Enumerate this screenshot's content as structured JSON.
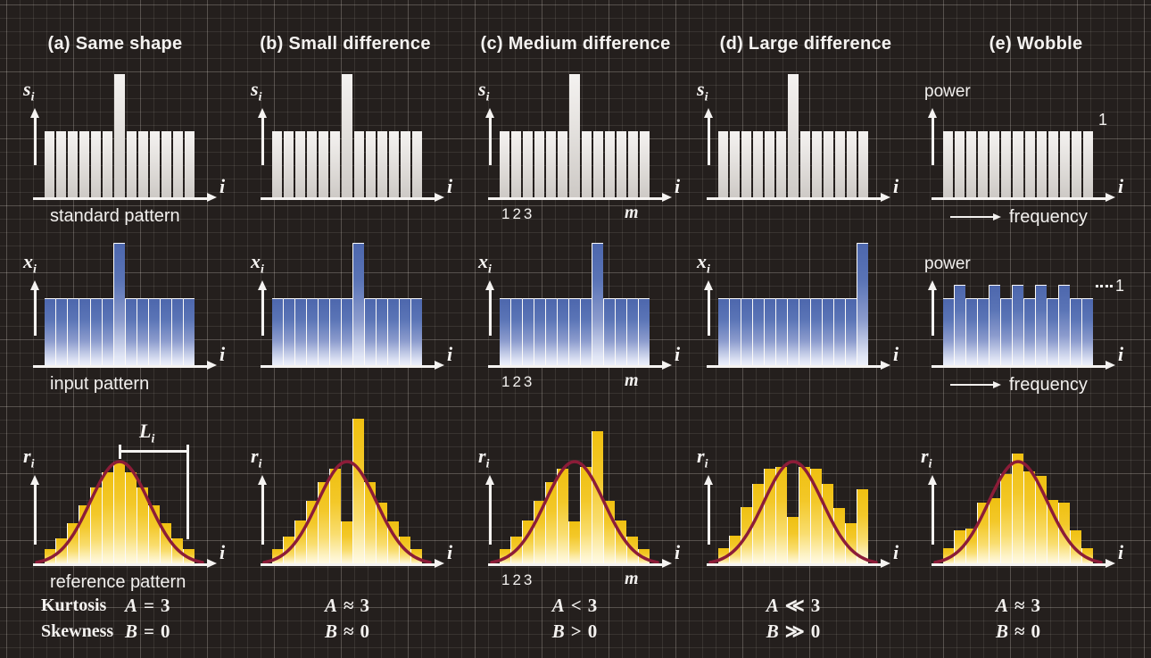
{
  "figure": {
    "columns": [
      {
        "key": "a",
        "header": "(a) Same shape"
      },
      {
        "key": "b",
        "header": "(b) Small difference"
      },
      {
        "key": "c",
        "header": "(c) Medium difference"
      },
      {
        "key": "d",
        "header": "(d) Large difference"
      },
      {
        "key": "e",
        "header": "(e) Wobble"
      }
    ],
    "row_captions": {
      "standard": "standard pattern",
      "input": "input pattern",
      "reference": "reference pattern"
    },
    "stats": {
      "row1_label": "Kurtosis",
      "row2_label": "Skewness",
      "values": [
        {
          "col": "a",
          "kurtosis": {
            "var": "A",
            "op": "=",
            "value": "3"
          },
          "skewness": {
            "var": "B",
            "op": "=",
            "value": "0"
          }
        },
        {
          "col": "b",
          "kurtosis": {
            "var": "A",
            "op": "≈",
            "value": "3"
          },
          "skewness": {
            "var": "B",
            "op": "≈",
            "value": "0"
          }
        },
        {
          "col": "c",
          "kurtosis": {
            "var": "A",
            "op": "<",
            "value": "3"
          },
          "skewness": {
            "var": "B",
            "op": ">",
            "value": "0"
          }
        },
        {
          "col": "d",
          "kurtosis": {
            "var": "A",
            "op": "≪",
            "value": "3"
          },
          "skewness": {
            "var": "B",
            "op": "≫",
            "value": "0"
          }
        },
        {
          "col": "e",
          "kurtosis": {
            "var": "A",
            "op": "≈",
            "value": "3"
          },
          "skewness": {
            "var": "B",
            "op": "≈",
            "value": "0"
          }
        }
      ]
    },
    "colors": {
      "background": "#241f1d",
      "bar_white_top": "#f4f2f0",
      "bar_white_bottom": "#cdc9c5",
      "bar_blue_top": "#4d67ad",
      "bar_blue_bottom": "#eef1fa",
      "bar_yellow_top": "#efc011",
      "bar_yellow_bottom": "#fffbe8",
      "curve": "#8c1c38",
      "axis": "#f5f3f1",
      "text": "#f2f0ee"
    }
  },
  "chart_data": [
    {
      "id": "a-standard",
      "col": "a",
      "row": "standard",
      "type": "bar",
      "style": "white",
      "ylabel": {
        "main": "s",
        "sub": "i"
      },
      "xlabel": "i",
      "caption": "standard pattern",
      "values": [
        1,
        1,
        1,
        1,
        1,
        1,
        1.85,
        1,
        1,
        1,
        1,
        1,
        1
      ]
    },
    {
      "id": "b-standard",
      "col": "b",
      "row": "standard",
      "type": "bar",
      "style": "white",
      "ylabel": {
        "main": "s",
        "sub": "i"
      },
      "xlabel": "i",
      "values": [
        1,
        1,
        1,
        1,
        1,
        1,
        1.85,
        1,
        1,
        1,
        1,
        1,
        1
      ]
    },
    {
      "id": "c-standard",
      "col": "c",
      "row": "standard",
      "type": "bar",
      "style": "white",
      "ylabel": {
        "main": "s",
        "sub": "i"
      },
      "xlabel": "i",
      "tick_left": "123",
      "tick_right": "m",
      "values": [
        1,
        1,
        1,
        1,
        1,
        1,
        1.85,
        1,
        1,
        1,
        1,
        1,
        1
      ]
    },
    {
      "id": "d-standard",
      "col": "d",
      "row": "standard",
      "type": "bar",
      "style": "white",
      "ylabel": {
        "main": "s",
        "sub": "i"
      },
      "xlabel": "i",
      "values": [
        1,
        1,
        1,
        1,
        1,
        1,
        1.85,
        1,
        1,
        1,
        1,
        1,
        1
      ]
    },
    {
      "id": "e-standard",
      "col": "e",
      "row": "standard",
      "type": "bar",
      "style": "white",
      "ylabel": {
        "text": "power"
      },
      "xlabel": "i",
      "freq_caption": "frequency",
      "right_marker": {
        "text": "1",
        "leader_dots": false
      },
      "values": [
        1,
        1,
        1,
        1,
        1,
        1,
        1,
        1,
        1,
        1,
        1,
        1,
        1
      ]
    },
    {
      "id": "a-input",
      "col": "a",
      "row": "input",
      "type": "bar",
      "style": "blue",
      "ylabel": {
        "main": "x",
        "sub": "i"
      },
      "xlabel": "i",
      "caption": "input pattern",
      "values": [
        1,
        1,
        1,
        1,
        1,
        1,
        1.83,
        1,
        1,
        1,
        1,
        1,
        1
      ]
    },
    {
      "id": "b-input",
      "col": "b",
      "row": "input",
      "type": "bar",
      "style": "blue",
      "ylabel": {
        "main": "x",
        "sub": "i"
      },
      "xlabel": "i",
      "values": [
        1,
        1,
        1,
        1,
        1,
        1,
        1,
        1.83,
        1,
        1,
        1,
        1,
        1
      ]
    },
    {
      "id": "c-input",
      "col": "c",
      "row": "input",
      "type": "bar",
      "style": "blue",
      "ylabel": {
        "main": "x",
        "sub": "i"
      },
      "xlabel": "i",
      "tick_left": "123",
      "tick_right": "m",
      "values": [
        1,
        1,
        1,
        1,
        1,
        1,
        1,
        1,
        1.83,
        1,
        1,
        1,
        1
      ]
    },
    {
      "id": "d-input",
      "col": "d",
      "row": "input",
      "type": "bar",
      "style": "blue",
      "ylabel": {
        "main": "x",
        "sub": "i"
      },
      "xlabel": "i",
      "values": [
        1,
        1,
        1,
        1,
        1,
        1,
        1,
        1,
        1,
        1,
        1,
        1,
        1.83
      ]
    },
    {
      "id": "e-input",
      "col": "e",
      "row": "input",
      "type": "bar",
      "style": "blue",
      "ylabel": {
        "text": "power"
      },
      "xlabel": "i",
      "freq_caption": "frequency",
      "right_marker": {
        "text": "1",
        "leader_dots": true
      },
      "values": [
        1,
        1.2,
        1,
        1,
        1.2,
        1,
        1.2,
        1,
        1.2,
        1,
        1.2,
        1,
        1
      ]
    },
    {
      "id": "a-reference",
      "col": "a",
      "row": "reference",
      "type": "bar",
      "style": "yellow",
      "ylabel": {
        "main": "r",
        "sub": "i"
      },
      "xlabel": "i",
      "caption": "reference pattern",
      "curve": {
        "shape": "gaussian",
        "sigma_bars": 2.55,
        "peak": 1
      },
      "bracket": {
        "main": "L",
        "sub": "i"
      },
      "values": [
        0.15,
        0.25,
        0.4,
        0.57,
        0.75,
        0.9,
        1.0,
        0.9,
        0.75,
        0.57,
        0.4,
        0.25,
        0.15
      ]
    },
    {
      "id": "b-reference",
      "col": "b",
      "row": "reference",
      "type": "bar",
      "style": "yellow",
      "ylabel": {
        "main": "r",
        "sub": "i"
      },
      "xlabel": "i",
      "curve": {
        "shape": "gaussian",
        "sigma_bars": 2.55,
        "peak": 1
      },
      "values": [
        0.15,
        0.27,
        0.43,
        0.62,
        0.8,
        0.93,
        0.42,
        1.42,
        0.8,
        0.6,
        0.42,
        0.27,
        0.15
      ]
    },
    {
      "id": "c-reference",
      "col": "c",
      "row": "reference",
      "type": "bar",
      "style": "yellow",
      "ylabel": {
        "main": "r",
        "sub": "i"
      },
      "xlabel": "i",
      "tick_left": "123",
      "tick_right": "m",
      "curve": {
        "shape": "gaussian",
        "sigma_bars": 2.55,
        "peak": 1
      },
      "values": [
        0.15,
        0.27,
        0.43,
        0.62,
        0.8,
        0.93,
        0.42,
        0.95,
        1.3,
        0.62,
        0.43,
        0.27,
        0.15
      ]
    },
    {
      "id": "d-reference",
      "col": "d",
      "row": "reference",
      "type": "bar",
      "style": "yellow",
      "ylabel": {
        "main": "r",
        "sub": "i"
      },
      "xlabel": "i",
      "curve": {
        "shape": "gaussian",
        "sigma_bars": 2.55,
        "peak": 1
      },
      "values": [
        0.16,
        0.28,
        0.56,
        0.78,
        0.93,
        0.95,
        0.46,
        0.95,
        0.93,
        0.78,
        0.55,
        0.4,
        0.73
      ]
    },
    {
      "id": "e-reference",
      "col": "e",
      "row": "reference",
      "type": "bar",
      "style": "yellow",
      "ylabel": {
        "main": "r",
        "sub": "i"
      },
      "xlabel": "i",
      "curve": {
        "shape": "gaussian",
        "sigma_bars": 2.55,
        "peak": 1
      },
      "values": [
        0.16,
        0.33,
        0.35,
        0.6,
        0.64,
        0.88,
        1.08,
        0.9,
        0.86,
        0.63,
        0.6,
        0.33,
        0.16
      ]
    }
  ]
}
